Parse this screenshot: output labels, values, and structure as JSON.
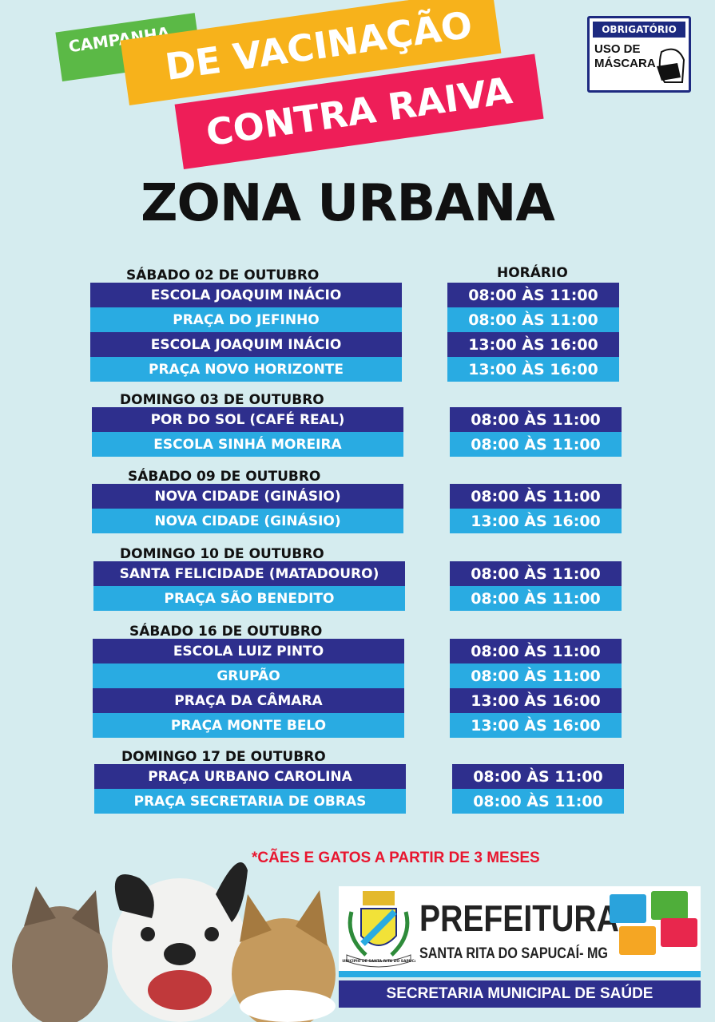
{
  "header": {
    "campaign": "CAMPANHA",
    "line1": "DE VACINAÇÃO",
    "line2": "CONTRA RAIVA"
  },
  "mask_sign": {
    "title": "OBRIGATÓRIO",
    "text": "USO DE MÁSCARA"
  },
  "title": "ZONA URBANA",
  "time_header": "HORÁRIO",
  "groups": [
    {
      "day": "SÁBADO 02 DE OUTUBRO",
      "rows": [
        {
          "place": "ESCOLA JOAQUIM INÁCIO",
          "time": "08:00 ÀS 11:00"
        },
        {
          "place": "PRAÇA DO JEFINHO",
          "time": "08:00 ÀS 11:00"
        },
        {
          "place": "ESCOLA JOAQUIM INÁCIO",
          "time": "13:00 ÀS 16:00"
        },
        {
          "place": "PRAÇA NOVO HORIZONTE",
          "time": "13:00 ÀS 16:00"
        }
      ]
    },
    {
      "day": "DOMINGO 03 DE OUTUBRO",
      "rows": [
        {
          "place": "POR DO SOL (CAFÉ REAL)",
          "time": "08:00 ÀS 11:00"
        },
        {
          "place": "ESCOLA SINHÁ MOREIRA",
          "time": "08:00 ÀS 11:00"
        }
      ]
    },
    {
      "day": "SÁBADO 09 DE OUTUBRO",
      "rows": [
        {
          "place": "NOVA CIDADE (GINÁSIO)",
          "time": "08:00 ÀS 11:00"
        },
        {
          "place": "NOVA CIDADE  (GINÁSIO)",
          "time": "13:00 ÀS 16:00"
        }
      ]
    },
    {
      "day": "DOMINGO 10 DE OUTUBRO",
      "rows": [
        {
          "place": "SANTA FELICIDADE (MATADOURO)",
          "time": "08:00 ÀS 11:00"
        },
        {
          "place": "PRAÇA SÃO BENEDITO",
          "time": "08:00 ÀS 11:00"
        }
      ]
    },
    {
      "day": "SÁBADO 16 DE OUTUBRO",
      "rows": [
        {
          "place": "ESCOLA LUIZ PINTO",
          "time": "08:00 ÀS 11:00"
        },
        {
          "place": "GRUPÃO",
          "time": "08:00 ÀS 11:00"
        },
        {
          "place": "PRAÇA DA CÂMARA",
          "time": "13:00 ÀS 16:00"
        },
        {
          "place": "PRAÇA MONTE BELO",
          "time": "13:00 ÀS 16:00"
        }
      ]
    },
    {
      "day": "DOMINGO 17 DE OUTUBRO",
      "rows": [
        {
          "place": "PRAÇA URBANO CAROLINA",
          "time": "08:00 ÀS 11:00"
        },
        {
          "place": "PRAÇA SECRETARIA DE OBRAS",
          "time": "08:00 ÀS 11:00"
        }
      ]
    }
  ],
  "note": "*CÃES E GATOS A PARTIR DE 3 MESES",
  "footer": {
    "name": "PREFEITURA",
    "city": "SANTA RITA DO SAPUCAÍ- MG",
    "department": "SECRETARIA MUNICIPAL DE SAÚDE",
    "coat_of_arms_text": "MUNICÍPIO DE SANTA RITA DO SAPUCAÍ"
  },
  "colors": {
    "background": "#d5ecef",
    "dark_row": "#2e2f8d",
    "light_row": "#29abe2",
    "green": "#5bb946",
    "orange": "#f7b21b",
    "pink": "#ee1e58",
    "note": "#e8162f"
  }
}
